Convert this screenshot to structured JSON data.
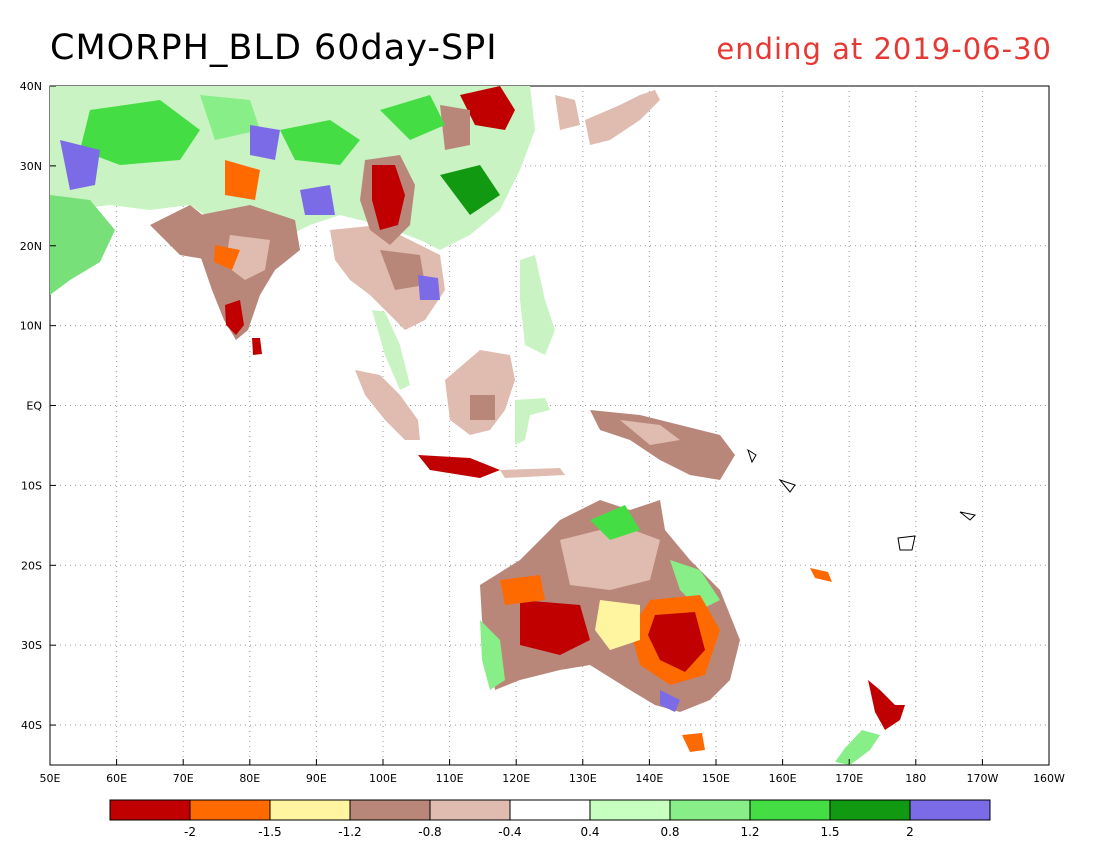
{
  "title": "CMORPH_BLD 60day-SPI",
  "subtitle": "ending at 2019-06-30",
  "colors": {
    "title": "#000000",
    "subtitle": "#e53935",
    "coast": "#000000",
    "grid": "#9a9a9a"
  },
  "map": {
    "projection": "cylindrical",
    "lon_range": [
      50,
      200
    ],
    "lat_range": [
      -45,
      40
    ],
    "lon_ticks": [
      "50E",
      "60E",
      "70E",
      "80E",
      "90E",
      "100E",
      "110E",
      "120E",
      "130E",
      "140E",
      "150E",
      "160E",
      "170E",
      "180",
      "170W",
      "160W"
    ],
    "lat_ticks": [
      "40N",
      "30N",
      "20N",
      "10N",
      "EQ",
      "10S",
      "20S",
      "30S",
      "40S"
    ],
    "grid": "dotted"
  },
  "colorbar": {
    "labels": [
      "-2",
      "-1.5",
      "-1.2",
      "-0.8",
      "-0.4",
      "0.4",
      "0.8",
      "1.2",
      "1.5",
      "2"
    ],
    "colors": [
      "#c00000",
      "#ff6a00",
      "#fff5a0",
      "#b8877a",
      "#e0bcb0",
      "#ffffff",
      "#c6ffc0",
      "#88ee88",
      "#44dd44",
      "#119911",
      "#7b6be6"
    ]
  }
}
